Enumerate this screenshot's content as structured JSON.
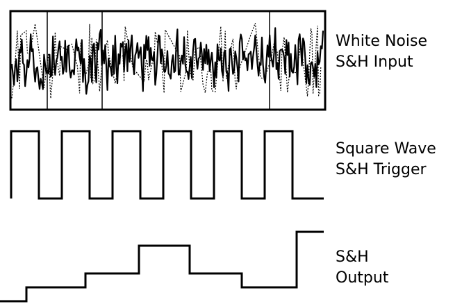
{
  "colors": {
    "ink": "#000000",
    "background": "#ffffff"
  },
  "rows": [
    {
      "id": "noise",
      "label_line1": "White Noise",
      "label_line2": "S&H Input"
    },
    {
      "id": "square",
      "label_line1": "Square Wave",
      "label_line2": "S&H Trigger",
      "cycles": 6
    },
    {
      "id": "output",
      "label_line1": "S&H",
      "label_line2": "Output",
      "levels": [
        0,
        1,
        2,
        4,
        2,
        1,
        5
      ]
    }
  ]
}
